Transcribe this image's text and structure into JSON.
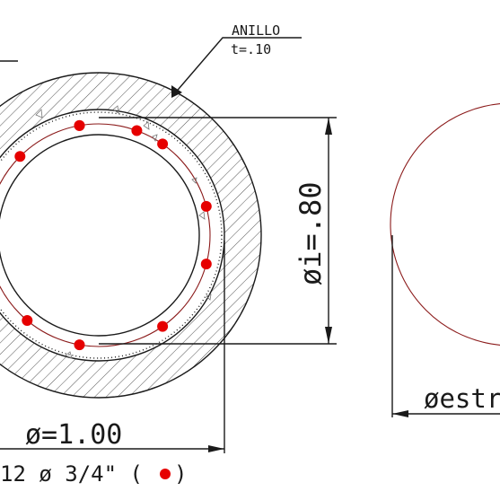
{
  "annotations": {
    "ring_label": "ANILLO",
    "ring_thickness": "t=.10",
    "inner_diameter": "øi=.80",
    "outer_diameter": "ø=1.00",
    "rebar_spec": "12 ø 3/4\" (",
    "rebar_spec_close": ")",
    "stirrup_diameter": "øestr"
  },
  "rebar": {
    "count": 12,
    "color": "#e60000",
    "angles_deg": [
      -100,
      -55,
      -15,
      15,
      55,
      100,
      130,
      160,
      190,
      225,
      260,
      290
    ]
  },
  "colors": {
    "line": "#1a1a1a",
    "hatch": "#555555",
    "stirrup": "#8b1a1a",
    "rebar": "#e60000",
    "background": "#ffffff"
  }
}
